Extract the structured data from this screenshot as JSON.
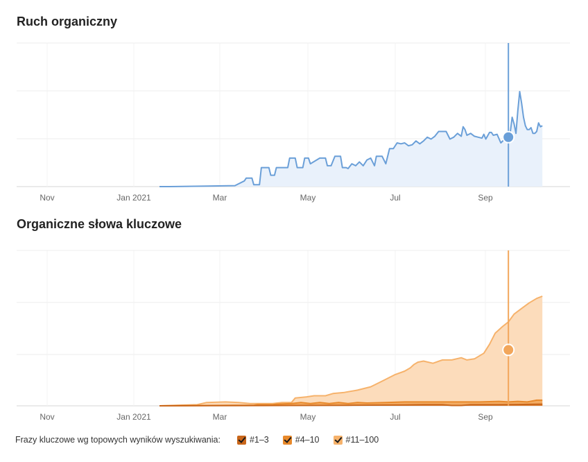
{
  "chart_data": [
    {
      "type": "area",
      "title": "Ruch organiczny",
      "x_ticks": [
        "Nov",
        "Jan 2021",
        "Mar",
        "May",
        "Jul",
        "Sep"
      ],
      "grid": true,
      "color": "#6a9fd8",
      "fill": "#e9f1fb",
      "series": [
        {
          "values": [
            [
              0.0,
              0
            ],
            [
              0.05,
              0
            ],
            [
              0.25,
              0.5
            ],
            [
              0.4,
              1
            ],
            [
              0.45,
              6
            ],
            [
              0.46,
              9
            ],
            [
              0.49,
              9
            ],
            [
              0.5,
              2
            ],
            [
              0.53,
              2
            ],
            [
              0.54,
              20
            ],
            [
              0.58,
              20
            ],
            [
              0.59,
              12
            ],
            [
              0.61,
              12
            ],
            [
              0.62,
              20
            ],
            [
              0.68,
              20
            ],
            [
              0.69,
              30
            ],
            [
              0.72,
              30
            ],
            [
              0.73,
              20
            ],
            [
              0.76,
              20
            ],
            [
              0.77,
              30
            ],
            [
              0.79,
              30
            ],
            [
              0.8,
              24
            ],
            [
              0.85,
              30
            ],
            [
              0.88,
              30
            ],
            [
              0.89,
              22
            ],
            [
              0.91,
              22
            ],
            [
              0.93,
              32
            ],
            [
              0.96,
              32
            ],
            [
              0.97,
              20
            ],
            [
              0.99,
              20
            ],
            [
              1.0,
              19
            ],
            [
              1.02,
              24
            ],
            [
              1.04,
              22
            ],
            [
              1.06,
              26
            ],
            [
              1.08,
              22
            ],
            [
              1.1,
              28
            ],
            [
              1.12,
              30
            ],
            [
              1.14,
              22
            ],
            [
              1.15,
              32
            ],
            [
              1.18,
              32
            ],
            [
              1.2,
              24
            ],
            [
              1.22,
              40
            ],
            [
              1.24,
              40
            ],
            [
              1.26,
              46
            ],
            [
              1.28,
              45
            ],
            [
              1.3,
              46
            ],
            [
              1.32,
              43
            ],
            [
              1.34,
              44
            ],
            [
              1.36,
              48
            ],
            [
              1.38,
              45
            ],
            [
              1.4,
              48
            ],
            [
              1.42,
              52
            ],
            [
              1.44,
              50
            ],
            [
              1.46,
              53
            ],
            [
              1.48,
              58
            ],
            [
              1.5,
              58
            ],
            [
              1.52,
              58
            ],
            [
              1.54,
              50
            ],
            [
              1.56,
              52
            ],
            [
              1.58,
              56
            ],
            [
              1.6,
              53
            ],
            [
              1.61,
              63
            ],
            [
              1.62,
              60
            ],
            [
              1.63,
              54
            ],
            [
              1.65,
              56
            ],
            [
              1.67,
              53
            ],
            [
              1.69,
              52
            ],
            [
              1.71,
              51
            ],
            [
              1.72,
              55
            ],
            [
              1.73,
              50
            ],
            [
              1.75,
              57
            ],
            [
              1.76,
              57
            ],
            [
              1.77,
              54
            ],
            [
              1.79,
              55
            ],
            [
              1.81,
              46
            ],
            [
              1.83,
              50
            ],
            [
              1.84,
              53
            ],
            [
              1.85,
              52
            ],
            [
              1.86,
              57
            ],
            [
              1.87,
              73
            ],
            [
              1.88,
              66
            ],
            [
              1.89,
              56
            ],
            [
              1.9,
              80
            ],
            [
              1.91,
              100
            ],
            [
              1.92,
              88
            ],
            [
              1.93,
              73
            ],
            [
              1.94,
              64
            ],
            [
              1.95,
              60
            ],
            [
              1.96,
              60
            ],
            [
              1.97,
              62
            ],
            [
              1.98,
              56
            ],
            [
              1.99,
              56
            ],
            [
              2.0,
              58
            ],
            [
              2.01,
              67
            ],
            [
              2.02,
              63
            ],
            [
              2.03,
              64
            ]
          ]
        }
      ],
      "highlight_point": [
        1.85,
        52
      ],
      "highlight_line_x": 1.85
    },
    {
      "type": "area",
      "title": "Organiczne słowa kluczowe",
      "x_ticks": [
        "Nov",
        "Jan 2021",
        "Mar",
        "May",
        "Jul",
        "Sep"
      ],
      "grid": true,
      "series": [
        {
          "name": "#11–100",
          "color": "#f6b26b",
          "fill": "#fcdcbb",
          "values": [
            [
              0.0,
              0
            ],
            [
              0.2,
              1
            ],
            [
              0.25,
              3
            ],
            [
              0.35,
              3.5
            ],
            [
              0.42,
              3
            ],
            [
              0.48,
              2
            ],
            [
              0.6,
              2
            ],
            [
              0.65,
              3
            ],
            [
              0.7,
              3
            ],
            [
              0.72,
              7
            ],
            [
              0.78,
              8
            ],
            [
              0.82,
              9
            ],
            [
              0.88,
              9
            ],
            [
              0.92,
              11
            ],
            [
              0.98,
              12
            ],
            [
              1.05,
              14
            ],
            [
              1.12,
              17
            ],
            [
              1.18,
              22
            ],
            [
              1.25,
              28
            ],
            [
              1.3,
              31
            ],
            [
              1.33,
              34
            ],
            [
              1.35,
              37
            ],
            [
              1.37,
              39
            ],
            [
              1.4,
              40
            ],
            [
              1.45,
              38
            ],
            [
              1.5,
              41
            ],
            [
              1.55,
              41
            ],
            [
              1.6,
              43
            ],
            [
              1.63,
              41
            ],
            [
              1.67,
              42
            ],
            [
              1.72,
              47
            ],
            [
              1.75,
              55
            ],
            [
              1.78,
              65
            ],
            [
              1.82,
              71
            ],
            [
              1.85,
              75
            ],
            [
              1.88,
              82
            ],
            [
              1.92,
              87
            ],
            [
              1.96,
              92
            ],
            [
              2.0,
              96
            ],
            [
              2.03,
              98
            ]
          ]
        },
        {
          "name": "#4–10",
          "color": "#e8892b",
          "fill": "#f2a65a",
          "values": [
            [
              0.0,
              0
            ],
            [
              0.4,
              0.5
            ],
            [
              0.5,
              0.5
            ],
            [
              0.52,
              1
            ],
            [
              0.6,
              1
            ],
            [
              0.62,
              1.5
            ],
            [
              0.7,
              2
            ],
            [
              0.75,
              3
            ],
            [
              0.8,
              2
            ],
            [
              0.85,
              3
            ],
            [
              0.9,
              2
            ],
            [
              0.95,
              3
            ],
            [
              1.0,
              2
            ],
            [
              1.05,
              3
            ],
            [
              1.1,
              2.5
            ],
            [
              1.2,
              3
            ],
            [
              1.3,
              3.5
            ],
            [
              1.4,
              3.5
            ],
            [
              1.5,
              3.5
            ],
            [
              1.6,
              3.5
            ],
            [
              1.7,
              3.5
            ],
            [
              1.8,
              4
            ],
            [
              1.85,
              3.5
            ],
            [
              1.9,
              4
            ],
            [
              1.95,
              3.5
            ],
            [
              2.0,
              5
            ],
            [
              2.03,
              5
            ]
          ]
        },
        {
          "name": "#1–3",
          "color": "#c9661a",
          "fill": "#d9782a",
          "values": [
            [
              0.0,
              0
            ],
            [
              0.7,
              0.3
            ],
            [
              1.0,
              0.5
            ],
            [
              1.3,
              0.8
            ],
            [
              1.4,
              1
            ],
            [
              1.5,
              1
            ],
            [
              1.55,
              0.3
            ],
            [
              1.6,
              0.3
            ],
            [
              1.65,
              1
            ],
            [
              1.8,
              1
            ],
            [
              1.9,
              1.2
            ],
            [
              2.03,
              1.5
            ]
          ]
        }
      ],
      "highlight_point": [
        1.85,
        50
      ],
      "highlight_line_x": 1.85
    }
  ],
  "legend": {
    "title": "Frazy kluczowe wg topowych wyników wyszukiwania:",
    "items": [
      {
        "label": "#1–3",
        "color": "#c9661a"
      },
      {
        "label": "#4–10",
        "color": "#e8892b"
      },
      {
        "label": "#11–100",
        "color": "#f6b26b"
      }
    ]
  }
}
